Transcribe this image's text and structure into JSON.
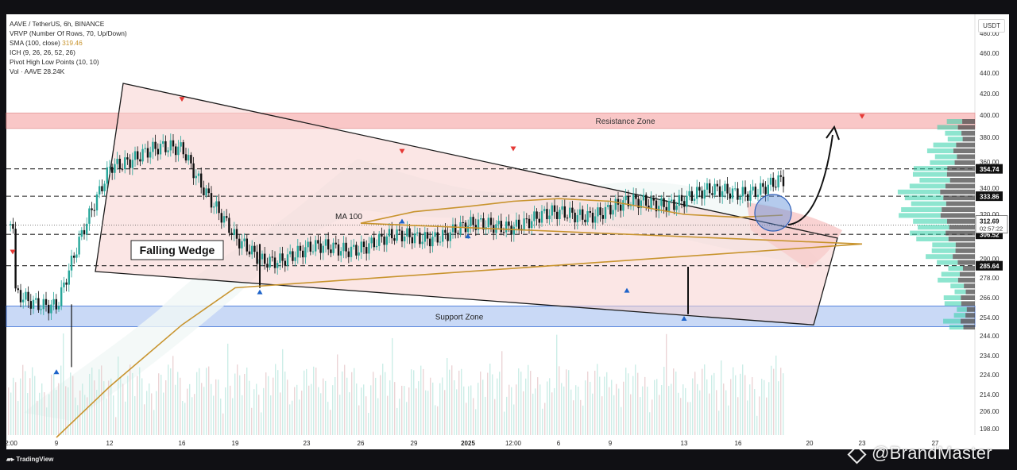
{
  "legend": {
    "symbol": "AAVE / TetherUS, 6h, BINANCE",
    "vrvp": "VRVP (Number Of Rows, 70, Up/Down)",
    "sma_label": "SMA (100, close)",
    "sma_value": "319.46",
    "ichimoku": "ICH (9, 26, 26, 52, 26)",
    "pivots": "Pivot High Low Points (10, 10)",
    "volume_label": "Vol · AAVE",
    "volume_value": "28.24K"
  },
  "currency": "USDT",
  "branding": {
    "tradingview": "TradingView",
    "watermark": "@BrandMaster"
  },
  "colors": {
    "up": "#26a69a",
    "down": "#111111",
    "sma": "#c8942e",
    "wedge_fill": "#f7d2d0",
    "resistance_zone": "#f9c7c7",
    "support_zone": "#c9d9f6",
    "pivot_high": "#e53935",
    "pivot_low": "#1e63c9"
  },
  "chart_data": {
    "type": "candlestick",
    "title": "",
    "ylim": [
      190,
      480
    ],
    "y_ticks": [
      198,
      206,
      214,
      224,
      234,
      244,
      254,
      266,
      278,
      290,
      320,
      340,
      360,
      380,
      400,
      420,
      440,
      460,
      480
    ],
    "x_labels": [
      "2:00",
      "9",
      "12",
      "16",
      "19",
      "23",
      "26",
      "29",
      "2025",
      "12:00",
      "6",
      "9",
      "13",
      "16",
      "20",
      "23",
      "27"
    ],
    "price_series": [
      [
        "2:00",
        268
      ],
      [
        "9",
        262
      ],
      [
        "12",
        360
      ],
      [
        "16",
        372
      ],
      [
        "19",
        300
      ],
      [
        "21",
        290
      ],
      [
        "23",
        352
      ],
      [
        "26",
        335
      ],
      [
        "28",
        330
      ],
      [
        "29",
        316
      ],
      [
        "2025",
        330
      ],
      [
        "12:00",
        348
      ],
      [
        "6",
        338
      ],
      [
        "9",
        295
      ],
      [
        "10",
        292
      ],
      [
        "13",
        258
      ],
      [
        "16",
        308
      ],
      [
        "18",
        312.69
      ]
    ],
    "sma_100": [
      [
        "9",
        194
      ],
      [
        "12",
        218
      ],
      [
        "16",
        250
      ],
      [
        "19",
        272
      ],
      [
        "23",
        300
      ],
      [
        "26",
        314
      ],
      [
        "29",
        322
      ],
      [
        "2025",
        326
      ],
      [
        "12:00",
        330
      ],
      [
        "6",
        332
      ],
      [
        "9",
        330
      ],
      [
        "13",
        320
      ],
      [
        "16",
        318
      ],
      [
        "18",
        319.46
      ]
    ],
    "price_levels": [
      {
        "label": "354.74",
        "value": 354.74
      },
      {
        "label": "333.86",
        "value": 333.86
      },
      {
        "label": "306.52",
        "value": 306.52
      },
      {
        "label": "285.64",
        "value": 285.64
      }
    ],
    "current_price": {
      "label": "312.69",
      "countdown": "02:57:22",
      "value": 312.69
    },
    "resistance_zone": {
      "label": "Resistance Zone",
      "range": [
        388,
        402
      ]
    },
    "support_zone": {
      "label": "Support Zone",
      "range": [
        249,
        261
      ]
    },
    "falling_wedge": {
      "label": "Falling Wedge",
      "upper_line": [
        [
          "12",
          430
        ],
        [
          "20",
          304
        ]
      ],
      "lower_line": [
        [
          "12",
          282
        ],
        [
          "20",
          250
        ]
      ]
    },
    "annotations": {
      "ma_label": "MA 100"
    },
    "pivot_highs": [
      [
        "2:00",
        294
      ],
      [
        "16",
        414
      ],
      [
        "23",
        398
      ],
      [
        "28",
        368
      ],
      [
        "12:00",
        370
      ]
    ],
    "pivot_lows": [
      [
        "9",
        226
      ],
      [
        "21",
        270
      ],
      [
        "28",
        316
      ],
      [
        "2025",
        306
      ],
      [
        "10",
        271
      ],
      [
        "13",
        254
      ]
    ],
    "volume_scale": [
      0,
      40
    ],
    "volume_vendor": "Vol · AAVE"
  }
}
